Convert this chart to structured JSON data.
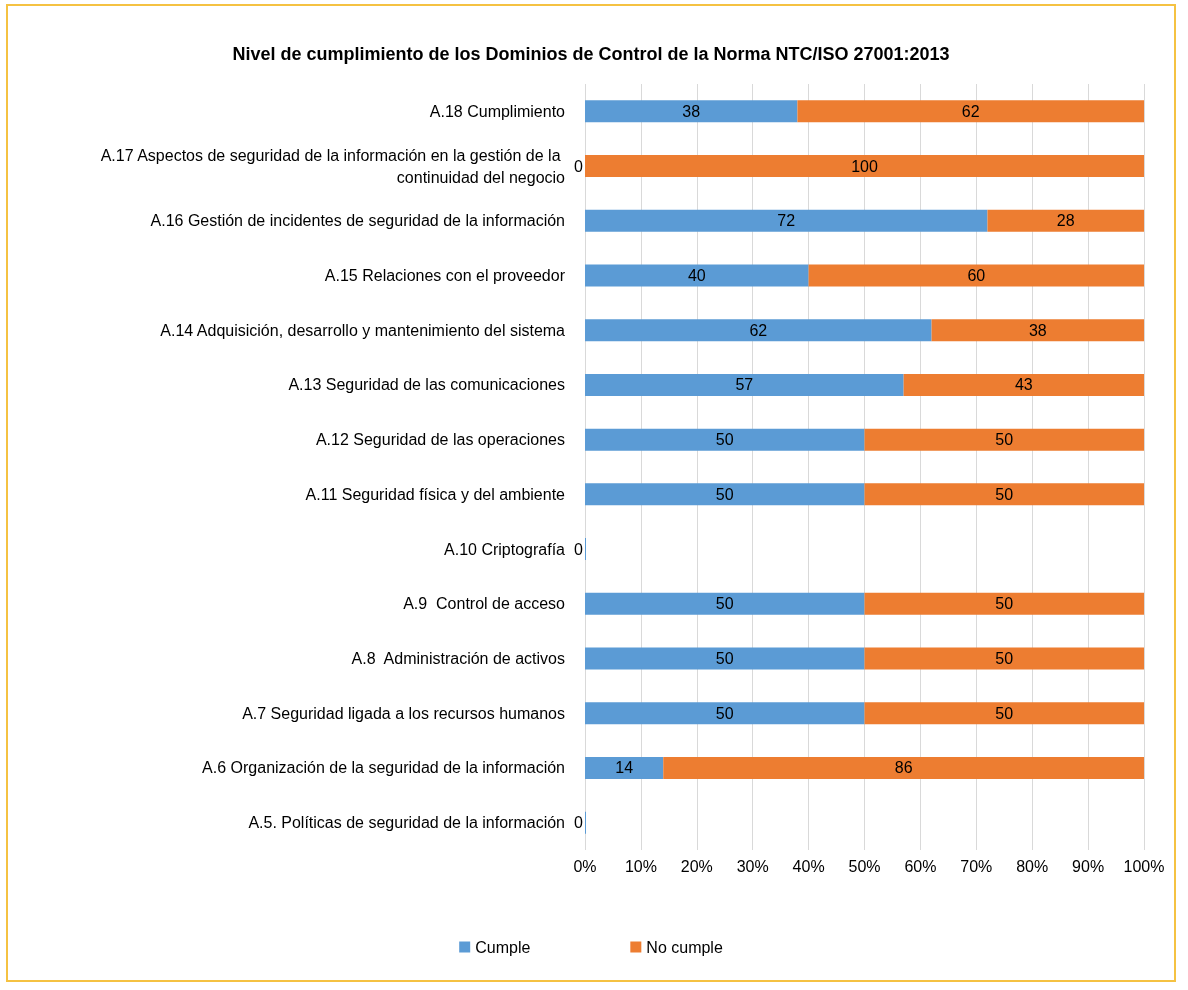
{
  "chart_data": {
    "type": "bar",
    "orientation": "horizontal",
    "stacked": true,
    "title": "Nivel de cumplimiento de los Dominios de Control de la Norma NTC/ISO 27001:2013",
    "categories": [
      "A.18 Cumplimiento",
      "A.17 Aspectos de seguridad de la información en la gestión de la continuidad del negocio",
      "A.16 Gestión de incidentes de seguridad de la información",
      "A.15 Relaciones con el proveedor",
      "A.14 Adquisición, desarrollo y mantenimiento del sistema",
      "A.13 Seguridad de las comunicaciones",
      "A.12 Seguridad de las operaciones",
      "A.11 Seguridad física y del ambiente",
      "A.10 Criptografía",
      "A.9  Control de acceso",
      "A.8  Administración de activos",
      "A.7 Seguridad ligada a los recursos humanos",
      "A.6 Organización de la seguridad de la información",
      "A.5. Políticas de seguridad de la información"
    ],
    "series": [
      {
        "name": "Cumple",
        "color": "#5b9bd5",
        "values": [
          38,
          0,
          72,
          40,
          62,
          57,
          50,
          50,
          0,
          50,
          50,
          50,
          14,
          0
        ]
      },
      {
        "name": "No cumple",
        "color": "#ed7d31",
        "values": [
          62,
          100,
          28,
          60,
          38,
          43,
          50,
          50,
          null,
          50,
          50,
          50,
          86,
          null
        ]
      }
    ],
    "xlim": [
      0,
      100
    ],
    "xticks": [
      {
        "value": 0,
        "label": "0%"
      },
      {
        "value": 10,
        "label": "10%"
      },
      {
        "value": 20,
        "label": "20%"
      },
      {
        "value": 30,
        "label": "30%"
      },
      {
        "value": 40,
        "label": "40%"
      },
      {
        "value": 50,
        "label": "50%"
      },
      {
        "value": 60,
        "label": "60%"
      },
      {
        "value": 70,
        "label": "70%"
      },
      {
        "value": 80,
        "label": "80%"
      },
      {
        "value": 90,
        "label": "90%"
      },
      {
        "value": 100,
        "label": "100%"
      }
    ],
    "grid": "x",
    "legend": "bottom",
    "data_labels": true
  }
}
